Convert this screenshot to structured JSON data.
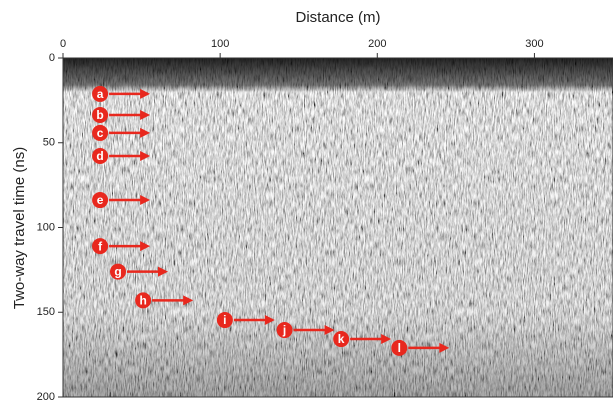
{
  "chart_data": {
    "type": "radargram",
    "xlabel": "Distance (m)",
    "ylabel": "Two-way travel time (ns)",
    "xlim": [
      0,
      350
    ],
    "xticks": [
      0,
      100,
      200,
      300
    ],
    "ylim": [
      0,
      200
    ],
    "yticks": [
      0,
      50,
      100,
      150,
      200
    ],
    "annotations": [
      {
        "text": "a",
        "x": 23.6,
        "y": 21.2
      },
      {
        "text": "b",
        "x": 23.6,
        "y": 33.6
      },
      {
        "text": "c",
        "x": 23.6,
        "y": 44.2
      },
      {
        "text": "d",
        "x": 23.6,
        "y": 57.8
      },
      {
        "text": "e",
        "x": 23.6,
        "y": 83.8
      },
      {
        "text": "f",
        "x": 23.6,
        "y": 111
      },
      {
        "text": "g",
        "x": 35,
        "y": 126
      },
      {
        "text": "h",
        "x": 51,
        "y": 143
      },
      {
        "text": "i",
        "x": 103,
        "y": 154.6
      },
      {
        "text": "j",
        "x": 141,
        "y": 160.5
      },
      {
        "text": "k",
        "x": 177,
        "y": 165.8
      },
      {
        "text": "l",
        "x": 214,
        "y": 171
      }
    ],
    "annotation_color": "#e8281e"
  }
}
